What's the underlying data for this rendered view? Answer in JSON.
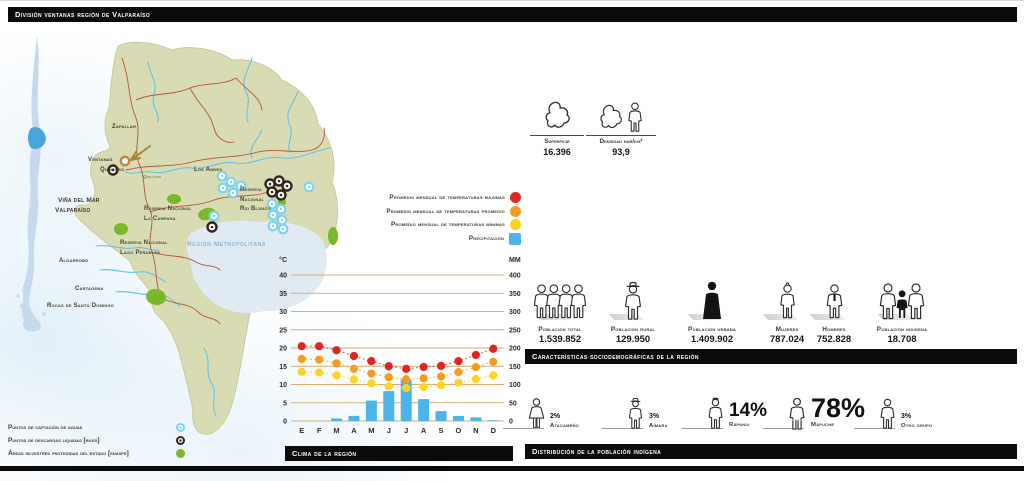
{
  "header": {
    "title": "División ventanas región de Valparaíso"
  },
  "map": {
    "labels": {
      "zapallar": "Zapallar",
      "ventanas": "Ventanas",
      "quintero": "Quintero",
      "quillota": "Quillota",
      "los_andes": "Los Andes",
      "rio_blanco": "Reserva\nNacional\nRío Blanco",
      "vina_del_mar": "Viña del Mar",
      "valparaiso": "Valparaíso",
      "la_campana": "Reserva Nacional\nLa Campana",
      "lago_penuelas": "Reserva Nacional\nLago Peñuelas",
      "region_metropolitana": "Región Metropolitana",
      "algarrobo": "Algarrobo",
      "cartagena": "Cartagena",
      "santo_domingo": "Rocas de Santo Domingo"
    },
    "legend": [
      {
        "label": "Puntos de captación de aguas",
        "marker": "light-blue-ring",
        "color": "#7ed3f2"
      },
      {
        "label": "Puntos de descargas líquidas [riles]",
        "marker": "dark-ring",
        "color": "#33241a"
      },
      {
        "label": "Áreas silvestres protegidas del estado [snaspe]",
        "marker": "green-dot",
        "color": "#79b829"
      }
    ]
  },
  "region_stats": [
    {
      "label": "Superficie",
      "value": "16.396"
    },
    {
      "label": "Densidad hab/km²",
      "value": "93,9"
    }
  ],
  "chart_data": {
    "type": "combo-bar-dots",
    "title": "Clima de la región",
    "months": [
      "E",
      "F",
      "M",
      "A",
      "M",
      "J",
      "J",
      "A",
      "S",
      "O",
      "N",
      "D"
    ],
    "left_axis": {
      "label": "°C",
      "min": 0,
      "max": 40,
      "step": 5
    },
    "right_axis": {
      "label": "MM",
      "min": 0,
      "max": 400,
      "step": 50
    },
    "grid": true,
    "legend_position": "above-left",
    "series": [
      {
        "name": "Promedio mensual de temperaturas máximas",
        "type": "dots",
        "unit": "°C",
        "color": "#e3231d",
        "values": [
          20.5,
          20.5,
          19.4,
          17.8,
          16.4,
          15.0,
          14.3,
          14.8,
          15.1,
          16.4,
          18.1,
          19.8
        ]
      },
      {
        "name": "Promedio mensual de temperaturas promedio",
        "type": "dots",
        "unit": "°C",
        "color": "#f59c1f",
        "values": [
          17.0,
          16.8,
          15.8,
          14.3,
          13.0,
          12.0,
          11.4,
          11.7,
          12.2,
          13.4,
          14.8,
          16.2
        ]
      },
      {
        "name": "Promedio mensual de temperaturas mínimas",
        "type": "dots",
        "unit": "°C",
        "color": "#fdd324",
        "values": [
          13.5,
          13.3,
          12.5,
          11.4,
          10.3,
          9.5,
          9.0,
          9.3,
          9.8,
          10.5,
          11.5,
          12.5
        ]
      },
      {
        "name": "Precipitación",
        "type": "bar",
        "unit": "mm",
        "color": "#4cb4e7",
        "values": [
          1,
          1,
          7,
          14,
          56,
          82,
          113,
          60,
          27,
          14,
          10,
          2
        ]
      }
    ]
  },
  "sociodemo": {
    "title": "Características sociodemográficas de la región",
    "stats": [
      {
        "label": "Población total",
        "value": "1.539.852",
        "icon": "people-group-icon"
      },
      {
        "label": "Población rural",
        "value": "129.950",
        "icon": "person-hat-icon"
      },
      {
        "label": "Población urbana",
        "value": "1.409.902",
        "icon": "person-filled-icon"
      },
      {
        "label": "Mujeres",
        "value": "787.024",
        "icon": "woman-icon"
      },
      {
        "label": "Hombres",
        "value": "752.828",
        "icon": "man-tie-icon"
      },
      {
        "label": "Población indígena",
        "value": "18.708",
        "icon": "indigenous-group-icon"
      }
    ]
  },
  "indigena": {
    "title": "Distribución de la población indígena",
    "groups": [
      {
        "pct": "2%",
        "label": "Atacameño",
        "icon": "atacameno-icon"
      },
      {
        "pct": "3%",
        "label": "Aimara",
        "icon": "aimara-icon"
      },
      {
        "pct": "14%",
        "label": "Rapanui",
        "icon": "rapanui-icon"
      },
      {
        "pct": "78%",
        "label": "Mapuche",
        "icon": "mapuche-icon"
      },
      {
        "pct": "3%",
        "label": "Otro grupo",
        "icon": "otro-grupo-icon"
      }
    ]
  }
}
